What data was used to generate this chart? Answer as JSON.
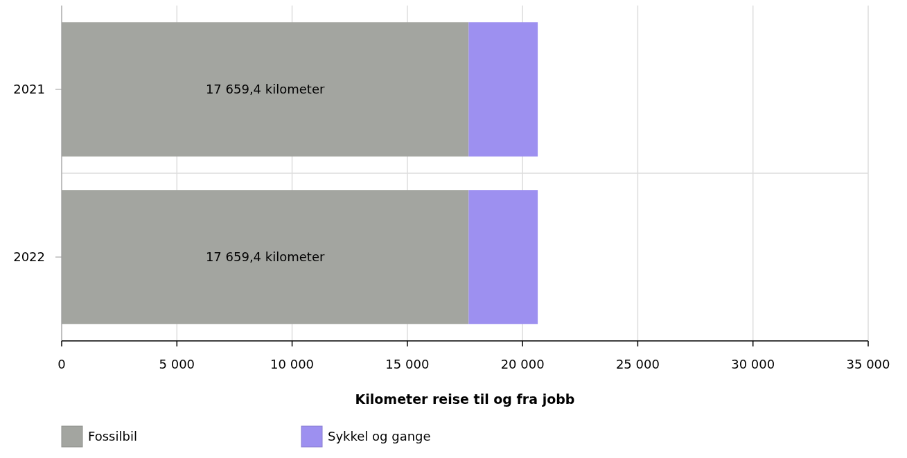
{
  "chart_data": {
    "type": "bar",
    "orientation": "horizontal",
    "stacked": true,
    "xlabel": "Kilometer reise til og fra jobb",
    "categories": [
      "2021",
      "2022"
    ],
    "series": [
      {
        "name": "Fossilbil",
        "color": "#a3a5a0",
        "values": [
          17659.4,
          17659.4
        ],
        "value_labels": [
          "17 659,4 kilometer",
          "17 659,4 kilometer"
        ]
      },
      {
        "name": "Sykkel og gange",
        "color": "#9d90f0",
        "values": [
          3000,
          3000
        ]
      }
    ],
    "xlim": [
      0,
      35000
    ],
    "xticks": [
      0,
      {
        "value": 5000,
        "label": "5 000"
      },
      {
        "value": 10000,
        "label": "10 000"
      },
      {
        "value": 15000,
        "label": "15 000"
      },
      {
        "value": 20000,
        "label": "20 000"
      },
      {
        "value": 25000,
        "label": "25 000"
      },
      {
        "value": 30000,
        "label": "30 000"
      },
      {
        "value": 35000,
        "label": "35 000"
      }
    ],
    "grid": true,
    "legend": "bottom left"
  }
}
